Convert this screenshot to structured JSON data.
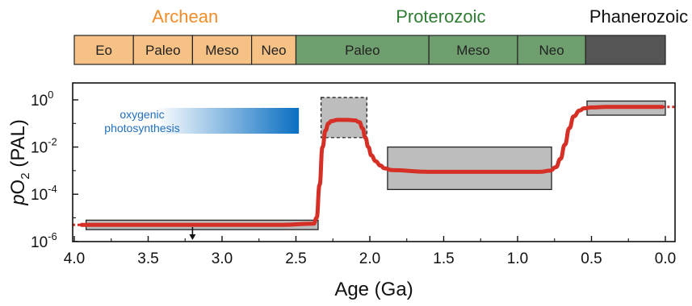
{
  "chart_data": {
    "type": "line",
    "xlabel": "Age (Ga)",
    "ylabel": "pO2 (PAL)",
    "xlim": [
      4.0,
      0.0
    ],
    "ylim_log10": [
      -6,
      0.3
    ],
    "y_scale": "log",
    "grid": false,
    "x_ticks": [
      "4.0",
      "3.5",
      "3.0",
      "2.5",
      "2.0",
      "1.5",
      "1.0",
      "0.5",
      "0.0"
    ],
    "y_ticks": [
      {
        "base": "10",
        "exp": "0"
      },
      {
        "base": "10",
        "exp": "-2"
      },
      {
        "base": "10",
        "exp": "-4"
      },
      {
        "base": "10",
        "exp": "-6"
      }
    ],
    "eons": [
      {
        "label": "Archean",
        "color": "#f28c28",
        "from": 4.0,
        "to": 2.5
      },
      {
        "label": "Proterozoic",
        "color": "#2e7d32",
        "from": 2.5,
        "to": 0.54
      },
      {
        "label": "Phanerozoic",
        "color": "#111111",
        "from": 0.54,
        "to": 0.0
      }
    ],
    "eras": [
      {
        "label": "Eo",
        "from": 4.0,
        "to": 3.6,
        "color": "#f6c185"
      },
      {
        "label": "Paleo",
        "from": 3.6,
        "to": 3.2,
        "color": "#f6c185"
      },
      {
        "label": "Meso",
        "from": 3.2,
        "to": 2.8,
        "color": "#f6c185"
      },
      {
        "label": "Neo",
        "from": 2.8,
        "to": 2.5,
        "color": "#f6c185"
      },
      {
        "label": "Paleo",
        "from": 2.5,
        "to": 1.6,
        "color": "#6f9f6f"
      },
      {
        "label": "Meso",
        "from": 1.6,
        "to": 1.0,
        "color": "#6f9f6f"
      },
      {
        "label": "Neo",
        "from": 1.0,
        "to": 0.54,
        "color": "#6f9f6f"
      },
      {
        "label": "",
        "from": 0.54,
        "to": 0.0,
        "color": "#555555"
      }
    ],
    "boxes": [
      {
        "x0": 3.92,
        "x1": 2.35,
        "y0_log10": -5.5,
        "y1_log10": -5.1,
        "dashed": false
      },
      {
        "x0": 2.33,
        "x1": 2.02,
        "y0_log10": -1.6,
        "y1_log10": 0.1,
        "dashed": true
      },
      {
        "x0": 1.88,
        "x1": 0.77,
        "y0_log10": -3.8,
        "y1_log10": -2.0,
        "dashed": false
      },
      {
        "x0": 0.53,
        "x1": 0.0,
        "y0_log10": -0.65,
        "y1_log10": -0.05,
        "dashed": false
      }
    ],
    "series": [
      {
        "color": "#d62f26",
        "x": [
          3.95,
          3.5,
          3.0,
          2.6,
          2.38,
          2.36,
          2.34,
          2.32,
          2.3,
          2.28,
          2.26,
          2.22,
          2.15,
          2.1,
          2.07,
          2.05,
          2.03,
          2.01,
          1.99,
          1.96,
          1.93,
          1.9,
          1.85,
          1.6,
          1.3,
          1.0,
          0.85,
          0.78,
          0.74,
          0.71,
          0.68,
          0.65,
          0.62,
          0.58,
          0.55,
          0.5,
          0.4,
          0.2,
          0.02
        ],
        "y_log10": [
          -5.3,
          -5.3,
          -5.3,
          -5.3,
          -5.25,
          -5.0,
          -3.6,
          -2.0,
          -1.3,
          -1.0,
          -0.9,
          -0.85,
          -0.85,
          -0.87,
          -0.95,
          -1.2,
          -1.6,
          -2.0,
          -2.35,
          -2.6,
          -2.78,
          -2.9,
          -2.98,
          -3.05,
          -3.05,
          -3.05,
          -3.05,
          -3.0,
          -2.85,
          -2.5,
          -1.9,
          -1.2,
          -0.7,
          -0.45,
          -0.36,
          -0.32,
          -0.3,
          -0.3,
          -0.3
        ]
      }
    ],
    "dashed_extensions": {
      "color": "#d62f26",
      "left_x": 4.0,
      "left_y_log10": -5.3,
      "right_x": 0.0,
      "right_y_log10": -0.3
    },
    "annotation": {
      "lines": [
        "oxygenic",
        "photosynthesis"
      ],
      "gradient_from": "#ffffff",
      "gradient_to": "#0a6fc2",
      "x0": 3.45,
      "x1": 2.48
    },
    "arrow_marker_age": 3.2
  }
}
